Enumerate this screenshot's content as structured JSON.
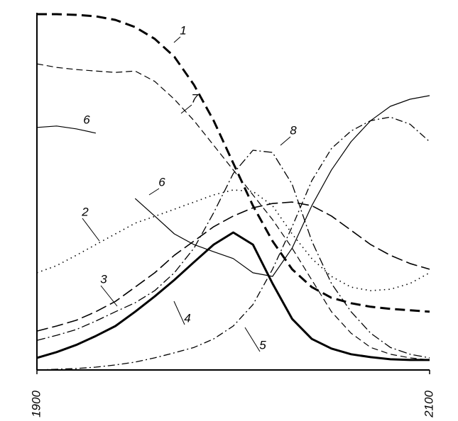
{
  "chart_data": {
    "type": "line",
    "x": [
      1900,
      1910,
      1920,
      1930,
      1940,
      1950,
      1960,
      1970,
      1980,
      1990,
      2000,
      2010,
      2020,
      2030,
      2040,
      2050,
      2060,
      2070,
      2080,
      2090,
      2100
    ],
    "xlim": [
      1900,
      2100
    ],
    "xticks": [
      1900,
      2100
    ],
    "ylim": [
      0,
      100
    ],
    "series": [
      {
        "name": "1",
        "color": "#000",
        "width": 3,
        "dash": "14 7",
        "values": [
          99.6,
          99.6,
          99.4,
          99,
          98,
          96,
          92.7,
          87.7,
          79.8,
          69.8,
          57.9,
          46,
          36.1,
          28.2,
          23.2,
          20.2,
          18.7,
          17.7,
          17.1,
          16.7,
          16.3
        ]
      },
      {
        "name": "2",
        "color": "#000",
        "width": 1.6,
        "dash": "1.5 5",
        "values": [
          27.2,
          29.2,
          32.1,
          35.1,
          38.1,
          41.1,
          43,
          45,
          47,
          49,
          50.4,
          50,
          46,
          38.1,
          31.2,
          26.2,
          23.2,
          22.2,
          22.6,
          24.2,
          27.2
        ]
      },
      {
        "name": "3",
        "color": "#000",
        "width": 1.6,
        "dash": "16 6",
        "values": [
          10.9,
          12.3,
          13.9,
          16.3,
          19.2,
          23.2,
          27.2,
          32.1,
          36.1,
          40.1,
          43.1,
          45.4,
          46.6,
          47,
          46,
          43.1,
          39.1,
          35.1,
          32.1,
          29.8,
          28.2
        ]
      },
      {
        "name": "4",
        "color": "#000",
        "width": 3,
        "dash": "none",
        "values": [
          3.4,
          5,
          7,
          9.5,
          12.3,
          16.3,
          20.6,
          25.2,
          30.2,
          35.1,
          38.5,
          35.1,
          24.2,
          14.3,
          8.7,
          6,
          4.4,
          3.6,
          3,
          2.8,
          2.8
        ]
      },
      {
        "name": "5",
        "color": "#000",
        "width": 1.3,
        "dash": "10 4 2 4",
        "values": [
          0,
          0.2,
          0.4,
          0.8,
          1.4,
          2.2,
          3.4,
          4.8,
          6.3,
          8.7,
          12.3,
          18.3,
          28.2,
          40.1,
          53,
          62,
          66.9,
          69.8,
          70.8,
          68.8,
          63.9
        ]
      },
      {
        "name": "6",
        "color": "#000",
        "width": 1.2,
        "dash": "none",
        "values": [
          67.9,
          68.3,
          67.5,
          66.3,
          null,
          48,
          43.1,
          38.1,
          35.1,
          33.1,
          31.2,
          27.2,
          26.2,
          34.1,
          46,
          56,
          63.9,
          69.8,
          73.8,
          75.8,
          76.8
        ]
      },
      {
        "name": "7",
        "color": "#000",
        "width": 1.2,
        "dash": "9 5",
        "values": [
          85.7,
          84.7,
          84.1,
          83.7,
          83.3,
          83.7,
          80.8,
          75.8,
          69.8,
          62.9,
          56,
          49,
          42.1,
          34.1,
          25.2,
          16.3,
          10.3,
          6.3,
          4.4,
          3.4,
          2.8
        ]
      },
      {
        "name": "8",
        "color": "#000",
        "width": 1.3,
        "dash": "12 4 2 4",
        "values": [
          8.3,
          9.7,
          11.3,
          13.7,
          16.3,
          18.8,
          22.2,
          27.2,
          34.1,
          44,
          55,
          61.5,
          60.9,
          52,
          36.1,
          24.2,
          16.3,
          10.3,
          6.3,
          4.4,
          3.4
        ]
      }
    ]
  }
}
